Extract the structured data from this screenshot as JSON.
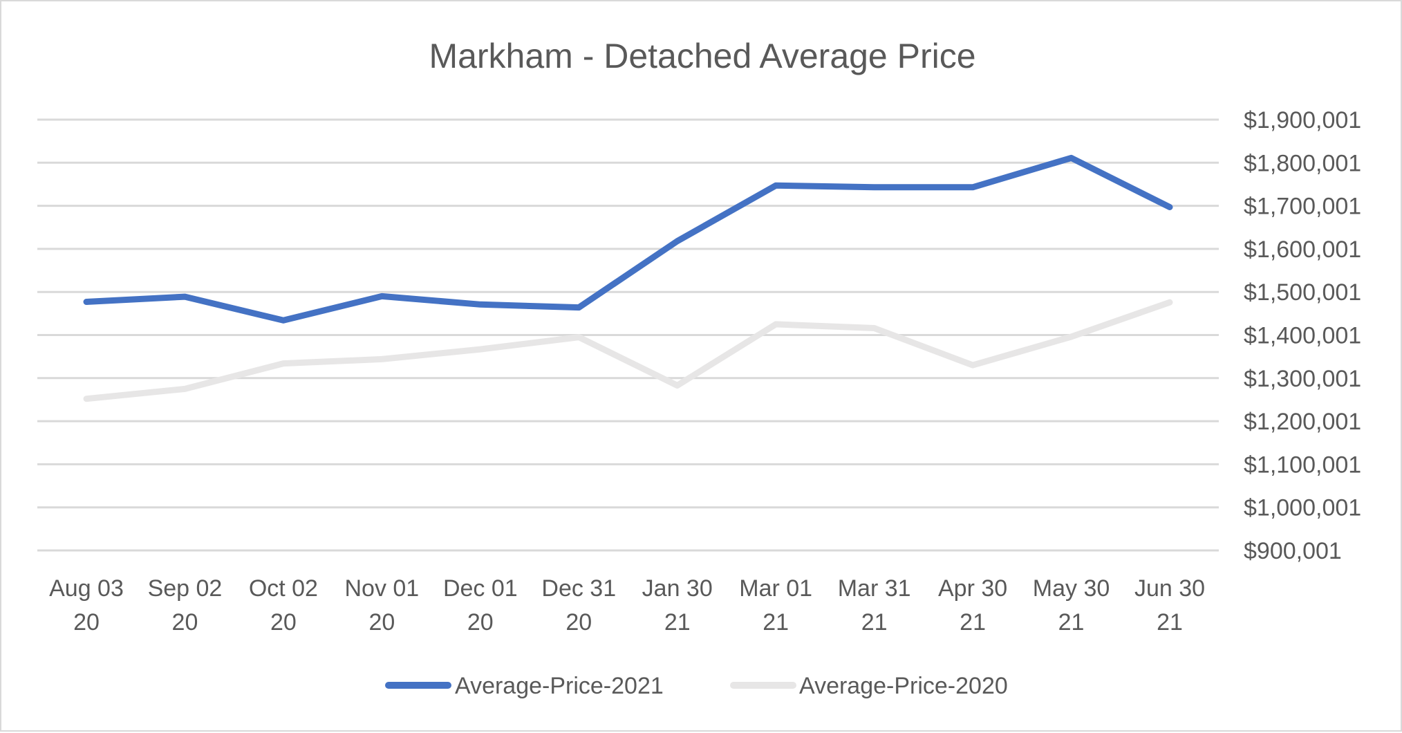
{
  "chart_data": {
    "type": "line",
    "title": "Markham - Detached Average Price",
    "xlabel": "",
    "ylabel": "",
    "y_axis_position": "right",
    "ylim": [
      900001,
      1900001
    ],
    "yticks": [
      900001,
      1000001,
      1100001,
      1200001,
      1300001,
      1400001,
      1500001,
      1600001,
      1700001,
      1800001,
      1900001
    ],
    "ytick_labels": [
      "$900,001",
      "$1,000,001",
      "$1,100,001",
      "$1,200,001",
      "$1,300,001",
      "$1,400,001",
      "$1,500,001",
      "$1,600,001",
      "$1,700,001",
      "$1,800,001",
      "$1,900,001"
    ],
    "grid": true,
    "categories": [
      [
        "Aug 03",
        "20"
      ],
      [
        "Sep 02",
        "20"
      ],
      [
        "Oct 02",
        "20"
      ],
      [
        "Nov 01",
        "20"
      ],
      [
        "Dec 01",
        "20"
      ],
      [
        "Dec 31",
        "20"
      ],
      [
        "Jan 30",
        "21"
      ],
      [
        "Mar 01",
        "21"
      ],
      [
        "Mar 31",
        "21"
      ],
      [
        "Apr 30",
        "21"
      ],
      [
        "May 30",
        "21"
      ],
      [
        "Jun 30",
        "21"
      ]
    ],
    "series": [
      {
        "name": "Average-Price-2021",
        "color": "#4472c4",
        "values": [
          1477000,
          1489000,
          1434000,
          1490000,
          1471000,
          1464000,
          1618000,
          1747000,
          1743000,
          1743000,
          1811000,
          1697000
        ]
      },
      {
        "name": "Average-Price-2020",
        "color": "#e7e6e6",
        "values": [
          1252000,
          1275000,
          1334000,
          1344000,
          1367000,
          1395000,
          1283000,
          1425000,
          1416000,
          1330000,
          1396000,
          1476000
        ]
      }
    ],
    "legend": {
      "position": "bottom",
      "entries": [
        "Average-Price-2021",
        "Average-Price-2020"
      ]
    }
  }
}
